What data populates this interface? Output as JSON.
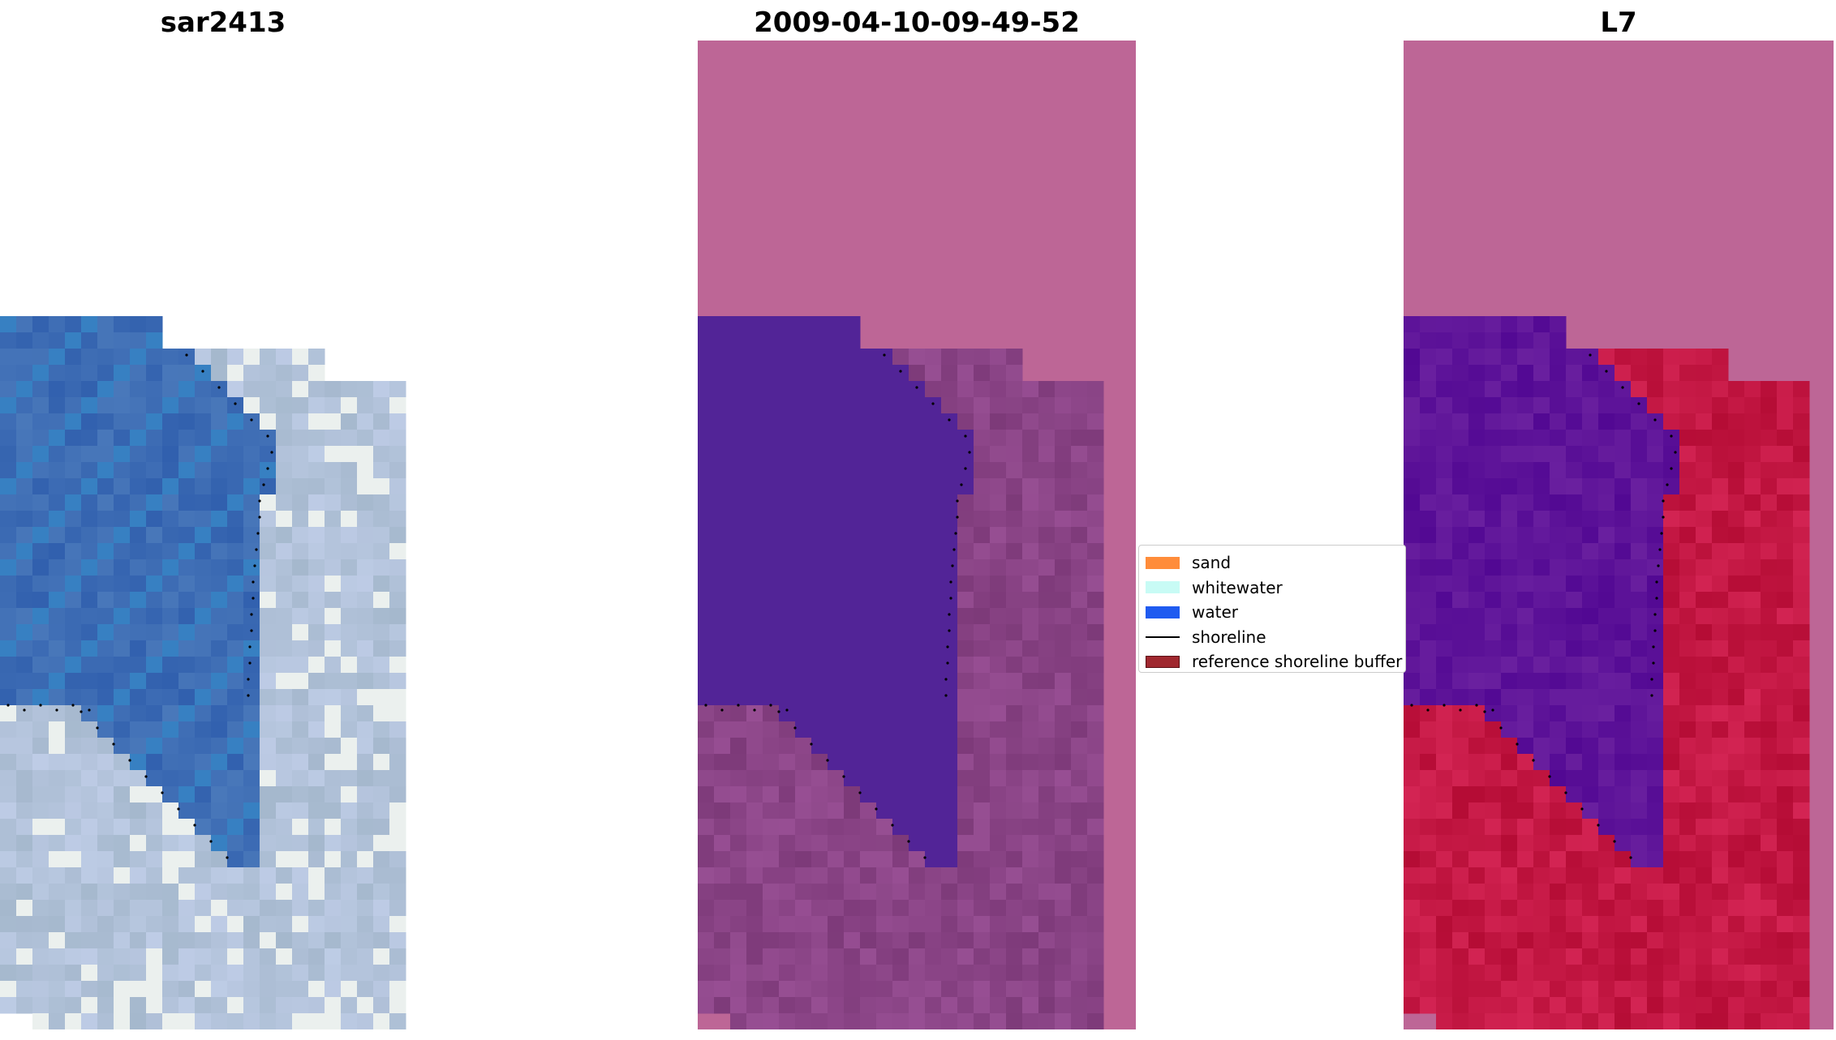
{
  "panels": [
    {
      "title": "sar2413"
    },
    {
      "title": "2009-04-10-09-49-52"
    },
    {
      "title": "L7"
    }
  ],
  "legend": {
    "items": [
      {
        "label": "sand",
        "color": "#ff8c3a",
        "kind": "patch"
      },
      {
        "label": "whitewater",
        "color": "#c8fbf5",
        "kind": "patch"
      },
      {
        "label": "water",
        "color": "#1f5bf0",
        "kind": "patch"
      },
      {
        "label": "shoreline",
        "color": "#000000",
        "kind": "line"
      },
      {
        "label": "reference shoreline buffer",
        "color": "#a0282f",
        "kind": "patch",
        "edge": "#5a1015"
      }
    ]
  },
  "colors": {
    "background_fill": "#bd6696",
    "rgb_water": "#3d6cb4",
    "rgb_land": "#b4c4dc",
    "classified_water": "#522497",
    "classified_land": "#8a4486",
    "mndwi_water": "#5e1499",
    "mndwi_land": "#c41844"
  }
}
